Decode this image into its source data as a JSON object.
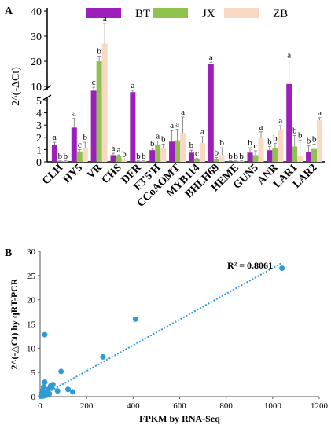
{
  "chart_data": [
    {
      "panel_label": "A",
      "type": "bar",
      "title": "",
      "ylabel": "2^(-ΔCt)",
      "xlabel": "",
      "categories": [
        "CLH",
        "HY5",
        "VR",
        "CHS",
        "DFR",
        "F3'5'H",
        "CCoAOMT",
        "MYB114",
        "BHLH69",
        "HEME",
        "GUN5",
        "ANR",
        "LAR1",
        "LAR2"
      ],
      "series": [
        {
          "name": "BT",
          "color": "#9b1fb8",
          "values": [
            1.35,
            2.8,
            8.5,
            0.55,
            8.0,
            0.95,
            1.65,
            0.75,
            19.0,
            0.05,
            0.75,
            0.95,
            11.0,
            0.8
          ],
          "errors": [
            0.25,
            0.75,
            1.2,
            0.15,
            0.6,
            0.15,
            0.9,
            0.2,
            0.6,
            0.03,
            0.4,
            0.3,
            9.5,
            0.5
          ],
          "letters": [
            "a",
            "a",
            "c",
            "a",
            "a",
            "b",
            "a",
            "b",
            "a",
            "b",
            "b",
            "b",
            "a",
            "b"
          ]
        },
        {
          "name": "JX",
          "color": "#8fc24f",
          "values": [
            0.05,
            0.85,
            20.0,
            0.45,
            0.05,
            1.35,
            1.75,
            0.2,
            0.25,
            0.05,
            0.55,
            1.1,
            1.25,
            1.05
          ],
          "errors": [
            0.03,
            0.15,
            2.0,
            0.12,
            0.03,
            0.35,
            0.9,
            0.1,
            0.1,
            0.03,
            0.35,
            0.4,
            0.9,
            0.4
          ],
          "letters": [
            "b",
            "c",
            "b",
            "a",
            "b",
            "a",
            "a",
            "c",
            "b",
            "b",
            "c",
            "b",
            "b",
            "b"
          ]
        },
        {
          "name": "ZB",
          "color": "#f9d9c3",
          "values": [
            0.05,
            1.15,
            27.0,
            0.15,
            0.05,
            1.15,
            2.35,
            1.55,
            0.55,
            0.05,
            1.95,
            2.55,
            0.45,
            3.4
          ],
          "errors": [
            0.03,
            0.45,
            8.0,
            0.08,
            0.03,
            0.3,
            1.3,
            0.5,
            0.6,
            0.03,
            0.5,
            0.4,
            1.3,
            0.2
          ],
          "letters": [
            "b",
            "b",
            "a",
            "b",
            "b",
            "b",
            "a",
            "a",
            "b",
            "b",
            "a",
            "a",
            "b",
            "a"
          ]
        }
      ],
      "y_break": [
        5,
        10
      ],
      "y_lower_ticks": [
        "0",
        "1",
        "2",
        "3",
        "4",
        "5"
      ],
      "y_upper_ticks": [
        "10",
        "20",
        "30",
        "40"
      ],
      "legend_placement": "top",
      "grid": false
    },
    {
      "panel_label": "B",
      "type": "scatter",
      "title": "",
      "xlabel": "FPKM by RNA-Seq",
      "ylabel": "2^(-△Ct) by qRT-PCR",
      "xlim": [
        0,
        1200
      ],
      "ylim": [
        0,
        30
      ],
      "x_ticks": [
        "0",
        "200",
        "400",
        "600",
        "800",
        "1000",
        "1200"
      ],
      "y_ticks": [
        "0",
        "5",
        "10",
        "15",
        "20",
        "25",
        "30"
      ],
      "points": [
        {
          "x": 1040,
          "y": 26.5
        },
        {
          "x": 410,
          "y": 16.0
        },
        {
          "x": 270,
          "y": 8.2
        },
        {
          "x": 20,
          "y": 12.8
        },
        {
          "x": 90,
          "y": 5.2
        },
        {
          "x": 50,
          "y": 2.0
        },
        {
          "x": 55,
          "y": 2.5
        },
        {
          "x": 120,
          "y": 1.5
        },
        {
          "x": 140,
          "y": 1.0
        },
        {
          "x": 75,
          "y": 1.2
        },
        {
          "x": 30,
          "y": 1.0
        },
        {
          "x": 20,
          "y": 3.0
        },
        {
          "x": 15,
          "y": 2.0
        },
        {
          "x": 25,
          "y": 0.5
        },
        {
          "x": 10,
          "y": 1.2
        },
        {
          "x": 40,
          "y": 0.6
        },
        {
          "x": 5,
          "y": 0.3
        },
        {
          "x": 8,
          "y": 0.8
        },
        {
          "x": 12,
          "y": 0.1
        },
        {
          "x": 3,
          "y": 0.1
        },
        {
          "x": 18,
          "y": 0.2
        },
        {
          "x": 35,
          "y": 1.5
        },
        {
          "x": 28,
          "y": 0.3
        },
        {
          "x": 45,
          "y": 2.2
        }
      ],
      "trendline": {
        "from": [
          0,
          0
        ],
        "to": [
          1040,
          27.6
        ]
      },
      "r2_label": "R² = 0.8061",
      "point_color": "#2e9bd6",
      "grid": false
    }
  ]
}
